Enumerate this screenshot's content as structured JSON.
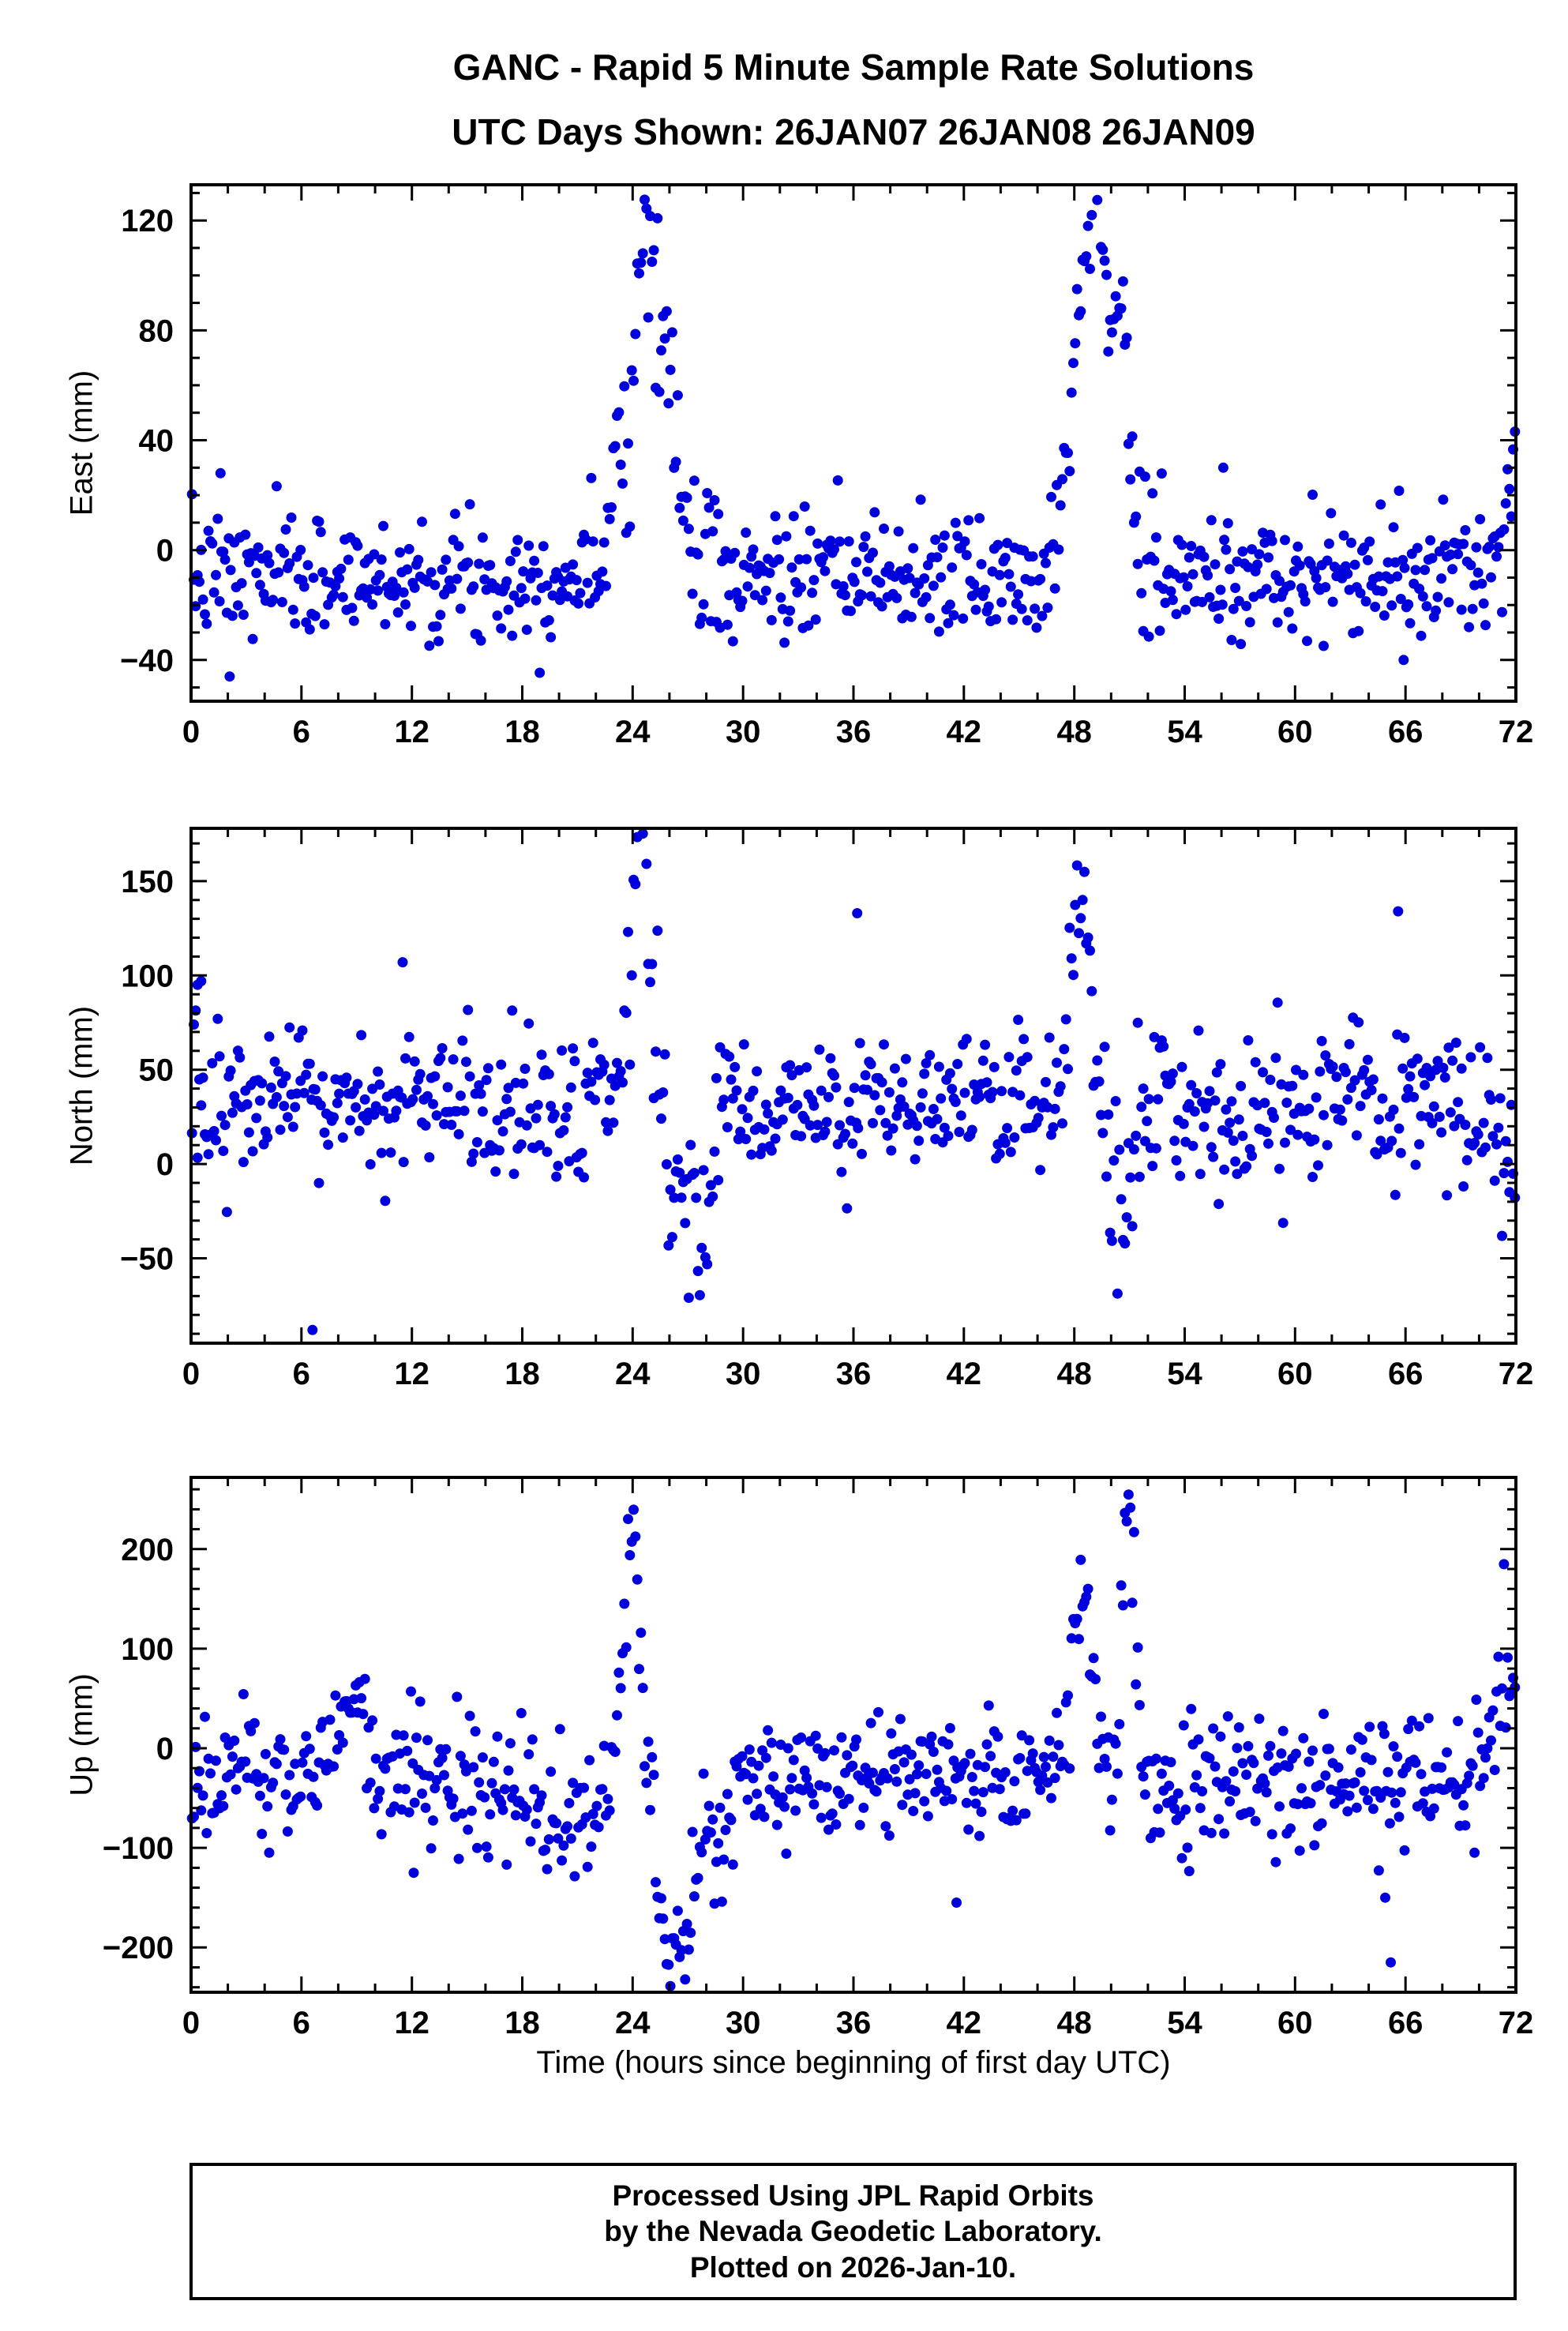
{
  "page": {
    "title": "GANC - Rapid 5 Minute Sample Rate Solutions",
    "subtitle": "UTC Days Shown:  26JAN07 26JAN08 26JAN09",
    "footer_line1": "Processed Using JPL Rapid Orbits",
    "footer_line2": "by the Nevada Geodetic Laboratory.",
    "footer_line3": "Plotted on 2026-Jan-10."
  },
  "style": {
    "marker_color": "#0000dd",
    "frame_color": "#000000",
    "text_color": "#000000"
  },
  "chart_data": [
    {
      "type": "scatter",
      "ylabel": "East (mm)",
      "xlabel": "",
      "xlim": [
        0,
        72
      ],
      "xticks_step": 6,
      "xminor_step": 2,
      "ylim": [
        -55,
        133
      ],
      "yticks": [
        -40,
        0,
        40,
        80,
        120
      ],
      "yminor_step": 10,
      "seed": 7,
      "legend": "none",
      "grid": false,
      "model": {
        "base": -10,
        "std": 11,
        "segments": [
          {
            "t0": 23.6,
            "t1": 26.0,
            "mean": -10,
            "std": 18
          },
          {
            "t0": 26.0,
            "t1": 28.6,
            "mean": -5,
            "std": 22
          },
          {
            "t0": 51.3,
            "t1": 53.0,
            "mean": -12,
            "std": 16
          },
          {
            "t0": 70.6,
            "t1": 72.0,
            "mean": 5,
            "std": 12
          }
        ],
        "spikes": [
          {
            "center": 23.2,
            "sigma": 0.45,
            "amp": 50
          },
          {
            "center": 24.6,
            "sigma": 0.55,
            "amp": 100
          },
          {
            "center": 25.6,
            "sigma": 0.7,
            "amp": 75
          },
          {
            "center": 49.0,
            "sigma": 1.0,
            "amp": 135
          },
          {
            "center": 50.6,
            "sigma": 0.4,
            "amp": 60
          },
          {
            "center": 71.9,
            "sigma": 0.6,
            "amp": 28
          }
        ],
        "outliers": [
          [
            1.6,
            28
          ],
          [
            2.1,
            -46
          ],
          [
            56.1,
            30
          ],
          [
            65.9,
            -40
          ]
        ]
      }
    },
    {
      "type": "scatter",
      "ylabel": "North (mm)",
      "xlabel": "",
      "xlim": [
        0,
        72
      ],
      "xticks_step": 6,
      "xminor_step": 2,
      "ylim": [
        -95,
        178
      ],
      "yticks": [
        -50,
        0,
        50,
        100,
        150
      ],
      "yminor_step": 10,
      "seed": 13,
      "legend": "none",
      "grid": false,
      "model": {
        "base": 30,
        "std": 20,
        "segments": [
          {
            "t0": 23.5,
            "t1": 25.6,
            "mean": 30,
            "std": 26
          },
          {
            "t0": 25.8,
            "t1": 28.3,
            "mean": -25,
            "std": 25
          },
          {
            "t0": 49.9,
            "t1": 51.3,
            "mean": -20,
            "std": 30
          },
          {
            "t0": 70.8,
            "t1": 72.0,
            "mean": 5,
            "std": 18
          }
        ],
        "spikes": [
          {
            "center": 24.4,
            "sigma": 0.5,
            "amp": 146
          },
          {
            "center": 48.3,
            "sigma": 0.5,
            "amp": 95
          }
        ],
        "outliers": [
          [
            0.35,
            95
          ],
          [
            0.55,
            97
          ],
          [
            6.6,
            -88
          ],
          [
            11.5,
            107
          ],
          [
            36.2,
            133
          ],
          [
            65.6,
            134
          ]
        ]
      }
    },
    {
      "type": "scatter",
      "ylabel": "Up (mm)",
      "xlabel": "Time (hours since beginning of first day UTC)",
      "xlim": [
        0,
        72
      ],
      "xticks_step": 6,
      "xminor_step": 2,
      "ylim": [
        -245,
        272
      ],
      "yticks": [
        -200,
        -100,
        0,
        100,
        200
      ],
      "yminor_step": 20,
      "seed": 21,
      "legend": "none",
      "grid": false,
      "model": {
        "base": -30,
        "std": 33,
        "segments": [
          {
            "t0": 16.0,
            "t1": 22.5,
            "mean": -60,
            "std": 38
          },
          {
            "t0": 23.2,
            "t1": 24.8,
            "mean": -30,
            "std": 48
          },
          {
            "t0": 25.2,
            "t1": 27.2,
            "mean": -185,
            "std": 25
          },
          {
            "t0": 27.2,
            "t1": 29.5,
            "mean": -90,
            "std": 35
          },
          {
            "t0": 49.9,
            "t1": 50.5,
            "mean": -70,
            "std": 40
          },
          {
            "t0": 70.3,
            "t1": 72.0,
            "mean": 10,
            "std": 30
          }
        ],
        "spikes": [
          {
            "center": 8.6,
            "sigma": 0.8,
            "amp": 75
          },
          {
            "center": 23.9,
            "sigma": 0.45,
            "amp": 230
          },
          {
            "center": 48.4,
            "sigma": 0.5,
            "amp": 200
          },
          {
            "center": 50.9,
            "sigma": 0.3,
            "amp": 295
          },
          {
            "center": 71.9,
            "sigma": 0.9,
            "amp": 60
          }
        ],
        "outliers": [
          [
            41.6,
            -155
          ],
          [
            64.9,
            -150
          ],
          [
            65.2,
            -215
          ],
          [
            12.1,
            -125
          ]
        ]
      }
    }
  ]
}
